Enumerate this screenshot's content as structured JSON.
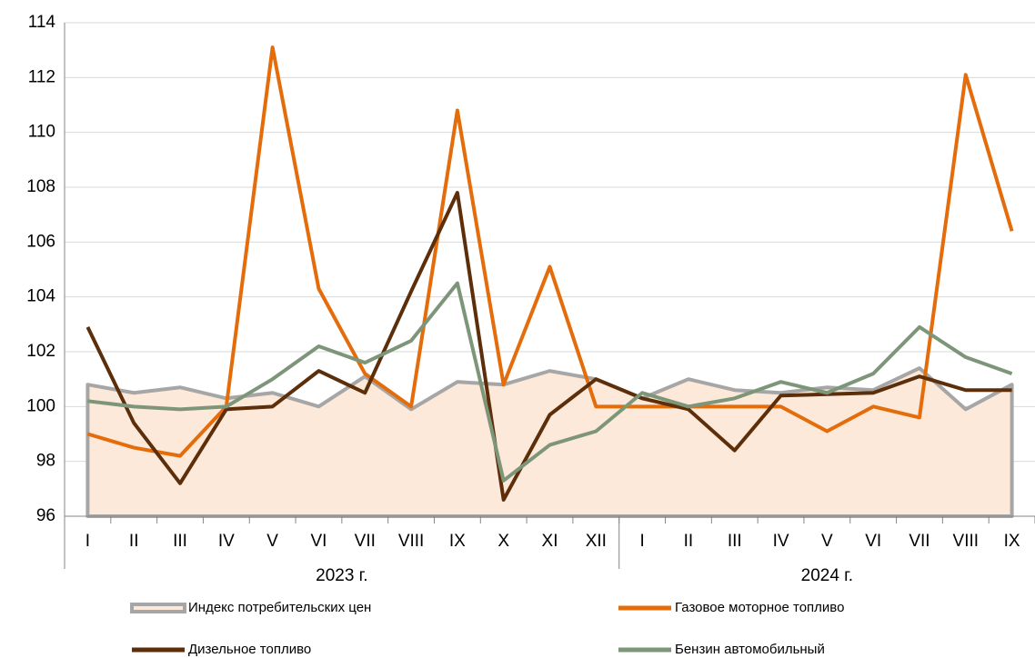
{
  "chart_data": {
    "type": "line",
    "categories": [
      "I",
      "II",
      "III",
      "IV",
      "V",
      "VI",
      "VII",
      "VIII",
      "IX",
      "X",
      "XI",
      "XII",
      "I",
      "II",
      "III",
      "IV",
      "V",
      "VI",
      "VII",
      "VIII",
      "IX"
    ],
    "groups": [
      {
        "name": "2023 г.",
        "span": 12
      },
      {
        "name": "2024 г.",
        "span": 9
      }
    ],
    "series": [
      {
        "name": "Индекс потребительских цен",
        "color": "#a6a6a6",
        "fill": "#fde9d9",
        "area": true,
        "values": [
          100.8,
          100.5,
          100.7,
          100.3,
          100.5,
          100.0,
          101.1,
          99.9,
          100.9,
          100.8,
          101.3,
          101.0,
          100.3,
          101.0,
          100.6,
          100.5,
          100.7,
          100.6,
          101.4,
          99.9,
          100.8
        ]
      },
      {
        "name": "Газовое моторное топливо",
        "color": "#e46c0a",
        "values": [
          99.0,
          98.5,
          98.2,
          100.0,
          113.1,
          104.3,
          101.2,
          100.0,
          110.8,
          100.8,
          105.1,
          100.0,
          100.0,
          100.0,
          100.0,
          100.0,
          99.1,
          100.0,
          99.6,
          112.1,
          106.4
        ]
      },
      {
        "name": "Дизельное топливо",
        "color": "#5c2e0a",
        "values": [
          102.9,
          99.4,
          97.2,
          99.9,
          100.0,
          101.3,
          100.5,
          104.2,
          107.8,
          96.6,
          99.7,
          101.0,
          100.3,
          99.9,
          98.4,
          100.4,
          100.45,
          100.5,
          101.1,
          100.6,
          100.6
        ]
      },
      {
        "name": "Бензин автомобильный",
        "color": "#7d9679",
        "values": [
          100.2,
          100.0,
          99.9,
          100.0,
          101.0,
          102.2,
          101.6,
          102.4,
          104.5,
          97.3,
          98.6,
          99.1,
          100.5,
          100.0,
          100.3,
          100.9,
          100.5,
          101.2,
          102.9,
          101.8,
          101.2
        ]
      }
    ],
    "ylim": [
      96,
      114
    ],
    "yticks": [
      96,
      98,
      100,
      102,
      104,
      106,
      108,
      110,
      112,
      114
    ],
    "grid": true,
    "legend": "bottom"
  }
}
